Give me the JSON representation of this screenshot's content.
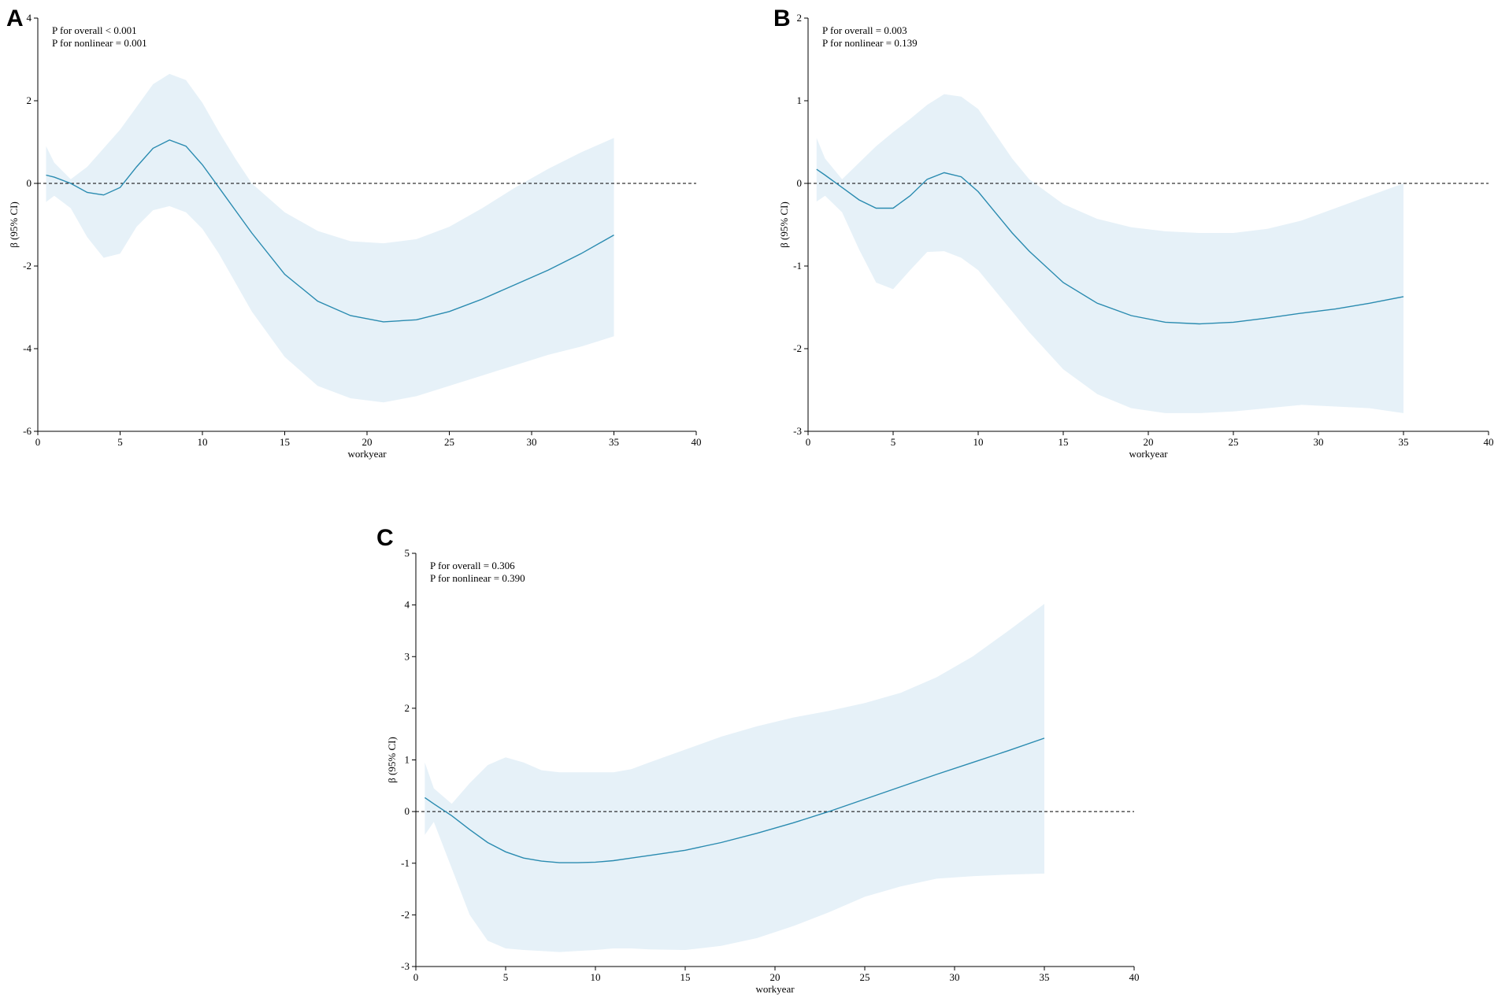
{
  "colors": {
    "band": "#e6f1f8",
    "line": "#2a8bb0",
    "axis": "#000000"
  },
  "chart_data": [
    {
      "panel": "A",
      "type": "line",
      "title": "",
      "annotations": [
        "P for overall < 0.001",
        "P for nonlinear = 0.001"
      ],
      "xlabel": "workyear",
      "ylabel": "β (95% CI)",
      "xlim": [
        0,
        40
      ],
      "ylim": [
        -6,
        4
      ],
      "xticks": [
        0,
        5,
        10,
        15,
        20,
        25,
        30,
        35,
        40
      ],
      "yticks": [
        -6,
        -4,
        -2,
        0,
        2,
        4
      ],
      "reference_line_y": 0,
      "series": [
        {
          "name": "β",
          "x": [
            0.5,
            1,
            2,
            3,
            4,
            5,
            6,
            7,
            8,
            9,
            10,
            11,
            12,
            13,
            15,
            17,
            19,
            21,
            23,
            25,
            27,
            29,
            31,
            33,
            35
          ],
          "values": [
            0.2,
            0.15,
            0.0,
            -0.22,
            -0.28,
            -0.1,
            0.4,
            0.85,
            1.05,
            0.9,
            0.45,
            -0.1,
            -0.65,
            -1.2,
            -2.2,
            -2.85,
            -3.2,
            -3.35,
            -3.3,
            -3.1,
            -2.8,
            -2.45,
            -2.1,
            -1.7,
            -1.25
          ]
        },
        {
          "name": "lower 95% CI",
          "x": [
            0.5,
            1,
            2,
            3,
            4,
            5,
            6,
            7,
            8,
            9,
            10,
            11,
            12,
            13,
            15,
            17,
            19,
            21,
            23,
            25,
            27,
            29,
            31,
            33,
            35
          ],
          "values": [
            -0.45,
            -0.3,
            -0.6,
            -1.3,
            -1.8,
            -1.7,
            -1.05,
            -0.65,
            -0.55,
            -0.7,
            -1.1,
            -1.7,
            -2.4,
            -3.1,
            -4.2,
            -4.9,
            -5.2,
            -5.3,
            -5.15,
            -4.9,
            -4.65,
            -4.4,
            -4.15,
            -3.95,
            -3.7
          ]
        },
        {
          "name": "upper 95% CI",
          "x": [
            0.5,
            1,
            2,
            3,
            4,
            5,
            6,
            7,
            8,
            9,
            10,
            11,
            12,
            13,
            15,
            17,
            19,
            21,
            23,
            25,
            27,
            29,
            31,
            33,
            35
          ],
          "values": [
            0.9,
            0.5,
            0.1,
            0.4,
            0.85,
            1.3,
            1.85,
            2.4,
            2.65,
            2.5,
            1.95,
            1.25,
            0.6,
            0.0,
            -0.7,
            -1.15,
            -1.4,
            -1.45,
            -1.35,
            -1.05,
            -0.6,
            -0.1,
            0.35,
            0.75,
            1.1
          ]
        }
      ]
    },
    {
      "panel": "B",
      "type": "line",
      "title": "",
      "annotations": [
        "P for overall = 0.003",
        "P for nonlinear = 0.139"
      ],
      "xlabel": "workyear",
      "ylabel": "β (95% CI)",
      "xlim": [
        0,
        40
      ],
      "ylim": [
        -3,
        2
      ],
      "xticks": [
        0,
        5,
        10,
        15,
        20,
        25,
        30,
        35,
        40
      ],
      "yticks": [
        -3,
        -2,
        -1,
        0,
        1,
        2
      ],
      "reference_line_y": 0,
      "series": [
        {
          "name": "β",
          "x": [
            0.5,
            1,
            2,
            3,
            4,
            5,
            6,
            7,
            8,
            9,
            10,
            11,
            12,
            13,
            15,
            17,
            19,
            21,
            23,
            25,
            27,
            29,
            31,
            33,
            35
          ],
          "values": [
            0.17,
            0.1,
            -0.05,
            -0.2,
            -0.3,
            -0.3,
            -0.15,
            0.05,
            0.13,
            0.08,
            -0.1,
            -0.35,
            -0.6,
            -0.82,
            -1.2,
            -1.45,
            -1.6,
            -1.68,
            -1.7,
            -1.68,
            -1.63,
            -1.57,
            -1.52,
            -1.45,
            -1.37
          ]
        },
        {
          "name": "lower 95% CI",
          "x": [
            0.5,
            1,
            2,
            3,
            4,
            5,
            6,
            7,
            8,
            9,
            10,
            11,
            12,
            13,
            15,
            17,
            19,
            21,
            23,
            25,
            27,
            29,
            31,
            33,
            35
          ],
          "values": [
            -0.22,
            -0.15,
            -0.35,
            -0.8,
            -1.2,
            -1.28,
            -1.05,
            -0.83,
            -0.82,
            -0.9,
            -1.05,
            -1.3,
            -1.55,
            -1.8,
            -2.25,
            -2.55,
            -2.72,
            -2.78,
            -2.78,
            -2.76,
            -2.72,
            -2.68,
            -2.7,
            -2.72,
            -2.78
          ]
        },
        {
          "name": "upper 95% CI",
          "x": [
            0.5,
            1,
            2,
            3,
            4,
            5,
            6,
            7,
            8,
            9,
            10,
            11,
            12,
            13,
            15,
            17,
            19,
            21,
            23,
            25,
            27,
            29,
            31,
            33,
            35
          ],
          "values": [
            0.55,
            0.3,
            0.05,
            0.25,
            0.45,
            0.62,
            0.78,
            0.95,
            1.08,
            1.05,
            0.9,
            0.6,
            0.3,
            0.05,
            -0.25,
            -0.43,
            -0.53,
            -0.58,
            -0.6,
            -0.6,
            -0.55,
            -0.45,
            -0.3,
            -0.15,
            0.0
          ]
        }
      ]
    },
    {
      "panel": "C",
      "type": "line",
      "title": "",
      "annotations": [
        "P for overall = 0.306",
        "P for nonlinear = 0.390"
      ],
      "xlabel": "workyear",
      "ylabel": "β (95% CI)",
      "xlim": [
        0,
        40
      ],
      "ylim": [
        -3,
        5
      ],
      "xticks": [
        0,
        5,
        10,
        15,
        20,
        25,
        30,
        35,
        40
      ],
      "yticks": [
        -3,
        -2,
        -1,
        0,
        1,
        2,
        3,
        4,
        5
      ],
      "reference_line_y": 0,
      "series": [
        {
          "name": "β",
          "x": [
            0.5,
            1,
            2,
            3,
            4,
            5,
            6,
            7,
            8,
            9,
            10,
            11,
            12,
            13,
            15,
            17,
            19,
            21,
            23,
            25,
            27,
            29,
            31,
            33,
            35
          ],
          "values": [
            0.27,
            0.15,
            -0.08,
            -0.35,
            -0.6,
            -0.78,
            -0.9,
            -0.96,
            -0.99,
            -0.99,
            -0.98,
            -0.95,
            -0.9,
            -0.85,
            -0.75,
            -0.6,
            -0.42,
            -0.22,
            0.0,
            0.24,
            0.48,
            0.72,
            0.95,
            1.18,
            1.42
          ]
        },
        {
          "name": "lower 95% CI",
          "x": [
            0.5,
            1,
            2,
            3,
            4,
            5,
            6,
            7,
            8,
            9,
            10,
            11,
            12,
            13,
            15,
            17,
            19,
            21,
            23,
            25,
            27,
            29,
            31,
            33,
            35
          ],
          "values": [
            -0.45,
            -0.2,
            -1.1,
            -2.0,
            -2.5,
            -2.65,
            -2.68,
            -2.7,
            -2.72,
            -2.7,
            -2.68,
            -2.65,
            -2.65,
            -2.67,
            -2.68,
            -2.6,
            -2.45,
            -2.22,
            -1.95,
            -1.65,
            -1.45,
            -1.3,
            -1.25,
            -1.22,
            -1.2
          ]
        },
        {
          "name": "upper 95% CI",
          "x": [
            0.5,
            1,
            2,
            3,
            4,
            5,
            6,
            7,
            8,
            9,
            10,
            11,
            12,
            13,
            15,
            17,
            19,
            21,
            23,
            25,
            27,
            29,
            31,
            33,
            35
          ],
          "values": [
            0.95,
            0.45,
            0.15,
            0.55,
            0.9,
            1.05,
            0.95,
            0.8,
            0.76,
            0.76,
            0.76,
            0.76,
            0.82,
            0.95,
            1.2,
            1.45,
            1.65,
            1.82,
            1.95,
            2.1,
            2.3,
            2.6,
            3.0,
            3.5,
            4.02
          ]
        }
      ]
    }
  ]
}
